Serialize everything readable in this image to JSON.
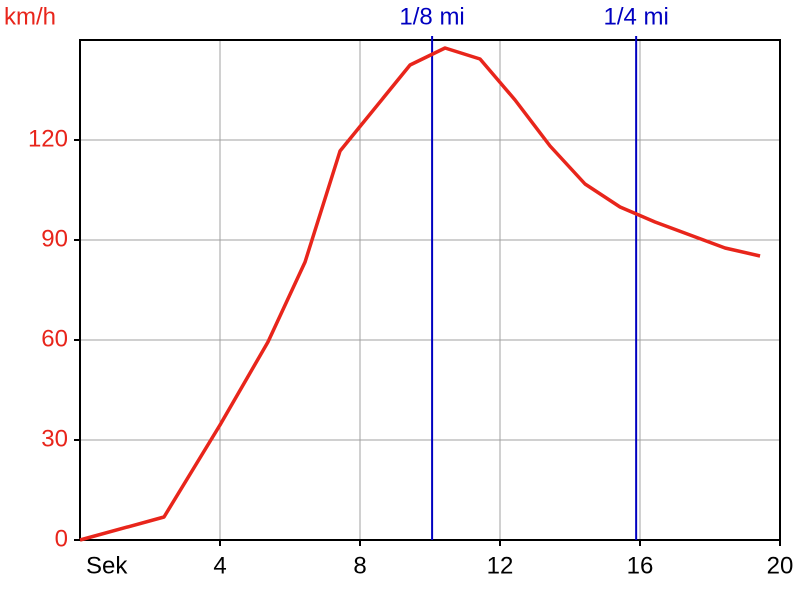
{
  "chart_data": {
    "type": "line",
    "x_label": "Sek",
    "y_label": "km/h",
    "x": [
      0,
      2.4,
      4,
      5.37,
      6.43,
      7.43,
      9.43,
      10.43,
      11.43,
      12.43,
      13.43,
      14.43,
      15.43,
      16.43,
      17.43,
      18.43,
      19.43
    ],
    "values": [
      0,
      6.9,
      34.5,
      59.4,
      83.4,
      116.7,
      142.5,
      147.6,
      144.3,
      132,
      118.2,
      106.8,
      99.9,
      95.4,
      91.5,
      87.6,
      85.2
    ],
    "color": "#e8251b",
    "xlim": [
      0,
      20
    ],
    "xticks": [
      4,
      8,
      12,
      16,
      20
    ],
    "ylim": [
      0,
      150
    ],
    "yticks": [
      0,
      30,
      60,
      90,
      120
    ],
    "grid": true,
    "markers": [
      {
        "label": "1/8 mi",
        "x": 10.06,
        "color": "#0000c0"
      },
      {
        "label": "1/4 mi",
        "x": 15.89,
        "color": "#0000c0"
      }
    ]
  }
}
